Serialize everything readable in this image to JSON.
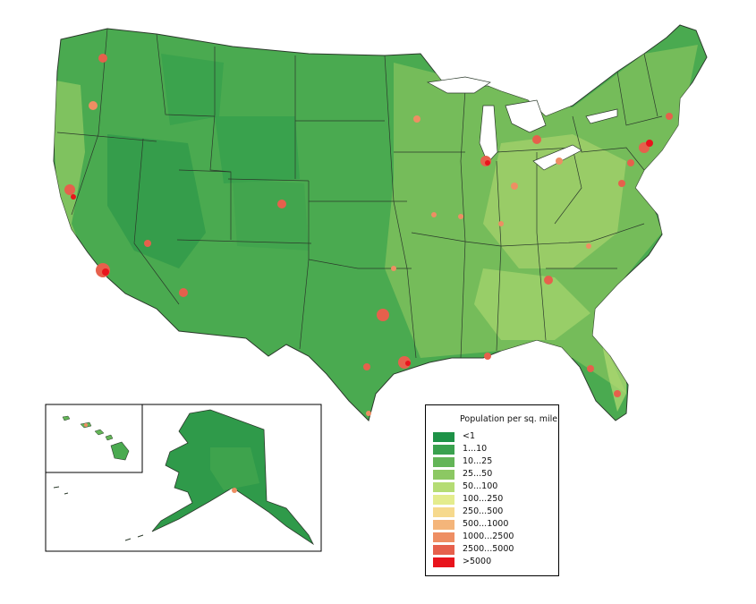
{
  "legend": {
    "title": "Population per sq. mile",
    "items": [
      {
        "label": "<1",
        "color": "#1e9247"
      },
      {
        "label": "1...10",
        "color": "#3aa14e"
      },
      {
        "label": "10...25",
        "color": "#63b557"
      },
      {
        "label": "25...50",
        "color": "#8cc863"
      },
      {
        "label": "50...100",
        "color": "#b5dc74"
      },
      {
        "label": "100...250",
        "color": "#e4ec8d"
      },
      {
        "label": "250...500",
        "color": "#f6d98d"
      },
      {
        "label": "500...1000",
        "color": "#f4b57a"
      },
      {
        "label": "1000...2500",
        "color": "#ee8e63"
      },
      {
        "label": "2500...5000",
        "color": "#e6604c"
      },
      {
        "label": ">5000",
        "color": "#e8141c"
      }
    ]
  },
  "colors": {
    "land_base": "#4aaa50",
    "land_light": "#7cc05c",
    "land_dark": "#2f9a4a",
    "border": "#2b3a2b",
    "urban": "#e8141c"
  }
}
